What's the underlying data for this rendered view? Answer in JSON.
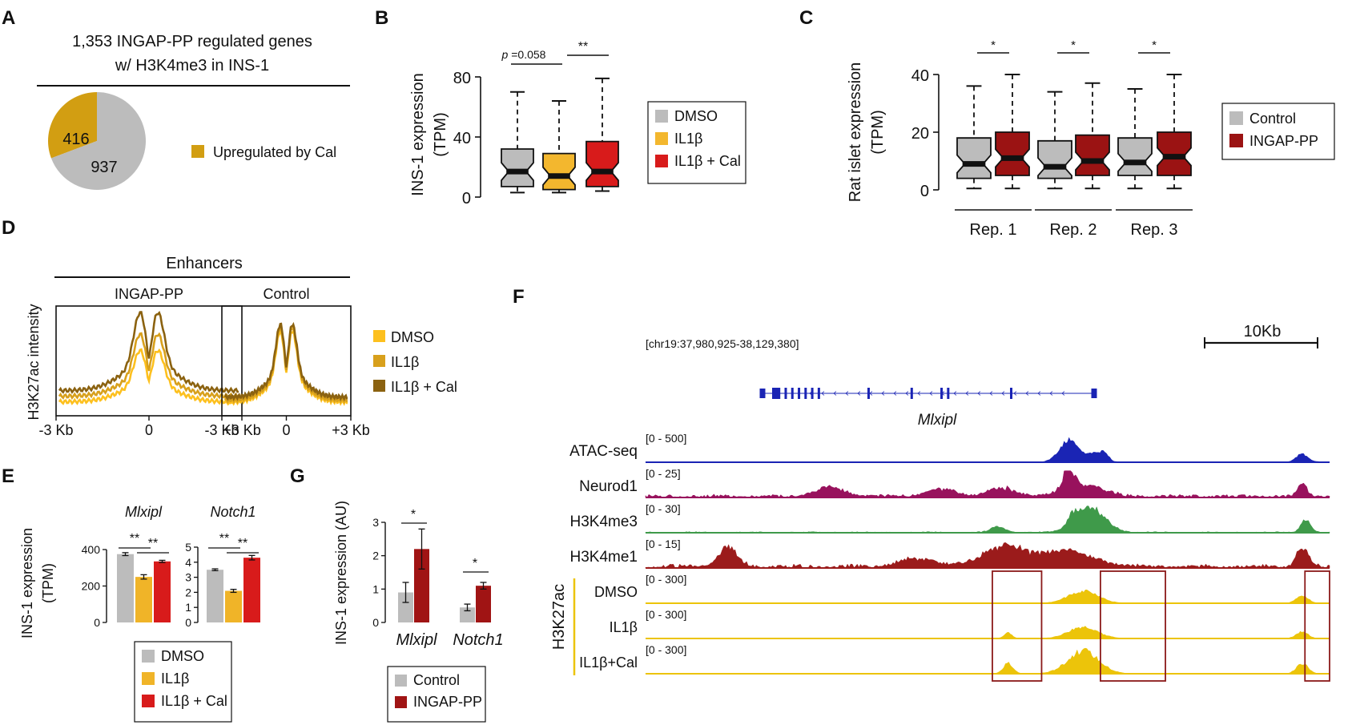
{
  "colors": {
    "grey": "#bcbcbc",
    "cal_gold": "#d29e12",
    "dmso_b": "#f3b72e",
    "il1b_b": "#f0b428",
    "cal_red": "#d81b1b",
    "dark_red": "#9b1313",
    "ingap_red": "#a01414",
    "atac": "#1a24b4",
    "neurod1": "#98125d",
    "h3k4me3": "#3f9a4a",
    "h3k4me1": "#9b1b1b",
    "h3k27ac": "#ecc40a",
    "gene": "#1a24b4",
    "dmso_d": "#fdc01e",
    "il1b_d": "#d8a01c",
    "cal_d": "#8b6210",
    "box_outline": "#8b1a1a"
  },
  "panels": {
    "A": "A",
    "B": "B",
    "C": "C",
    "D": "D",
    "E": "E",
    "F": "F",
    "G": "G"
  },
  "chart_data": [
    {
      "id": "A",
      "type": "pie",
      "title_line1": "1,353 INGAP-PP regulated genes",
      "title_line2": "w/ H3K4me3 in INS-1",
      "slices": [
        {
          "label": "416",
          "value": 416
        },
        {
          "label": "937",
          "value": 937
        }
      ],
      "legend": "Upregulated by Cal"
    },
    {
      "id": "B",
      "type": "box",
      "ylabel_line1": "INS-1 expression",
      "ylabel_line2": "(TPM)",
      "ylim": [
        0,
        80
      ],
      "yticks": [
        "0",
        "40",
        "80"
      ],
      "series": [
        {
          "name": "DMSO",
          "min": 3,
          "q1": 7,
          "median": 17,
          "q3": 32,
          "max": 70
        },
        {
          "name": "IL1β",
          "min": 3,
          "q1": 5,
          "median": 14,
          "q3": 29,
          "max": 64
        },
        {
          "name": "IL1β + Cal",
          "min": 4,
          "q1": 7,
          "median": 17,
          "q3": 37,
          "max": 79
        }
      ],
      "annotations": [
        {
          "label_prefix": "p",
          "label": " =0.058",
          "from": 0,
          "to": 1
        },
        {
          "label": "**",
          "from": 1,
          "to": 2
        }
      ],
      "legend": [
        "DMSO",
        "IL1β",
        "IL1β + Cal"
      ]
    },
    {
      "id": "C",
      "type": "box",
      "ylabel_line1": "Rat islet expression",
      "ylabel_line2": "(TPM)",
      "ylim": [
        0,
        40
      ],
      "yticks": [
        "0",
        "20",
        "40"
      ],
      "groups": [
        "Rep. 1",
        "Rep. 2",
        "Rep. 3"
      ],
      "series": [
        {
          "group": "Rep. 1",
          "name": "Control",
          "min": 0.5,
          "q1": 4,
          "median": 9,
          "q3": 18,
          "max": 36
        },
        {
          "group": "Rep. 1",
          "name": "INGAP-PP",
          "min": 0.5,
          "q1": 5,
          "median": 11,
          "q3": 20,
          "max": 40
        },
        {
          "group": "Rep. 2",
          "name": "Control",
          "min": 0.5,
          "q1": 4,
          "median": 8,
          "q3": 17,
          "max": 34
        },
        {
          "group": "Rep. 2",
          "name": "INGAP-PP",
          "min": 0.5,
          "q1": 5,
          "median": 10,
          "q3": 19,
          "max": 37
        },
        {
          "group": "Rep. 3",
          "name": "Control",
          "min": 0.5,
          "q1": 5,
          "median": 9.5,
          "q3": 18,
          "max": 35
        },
        {
          "group": "Rep. 3",
          "name": "INGAP-PP",
          "min": 0.5,
          "q1": 5,
          "median": 11.5,
          "q3": 20,
          "max": 40
        }
      ],
      "stars": [
        "*",
        "*",
        "*"
      ],
      "legend": [
        "Control",
        "INGAP-PP"
      ]
    },
    {
      "id": "D",
      "type": "line",
      "title": "Enhancers",
      "subplots": [
        "INGAP-PP",
        "Control"
      ],
      "ylabel": "H3K27ac intensity",
      "xticks": [
        "-3 Kb",
        "0",
        "+3 Kb"
      ],
      "series": [
        {
          "name": "DMSO",
          "ingap_amp": 0.58,
          "ingap_base": 0.08,
          "ctrl_amp": 0.8,
          "ctrl_base": 0.08
        },
        {
          "name": "IL1β",
          "ingap_amp": 0.7,
          "ingap_base": 0.14,
          "ctrl_amp": 0.82,
          "ctrl_base": 0.1
        },
        {
          "name": "IL1β + Cal",
          "ingap_amp": 0.88,
          "ingap_base": 0.2,
          "ctrl_amp": 0.82,
          "ctrl_base": 0.13
        }
      ],
      "legend": [
        "DMSO",
        "IL1β",
        "IL1β + Cal"
      ]
    },
    {
      "id": "E",
      "type": "bar",
      "ylabel_line1": "INS-1 expression",
      "ylabel_line2": "(TPM)",
      "subplots": [
        {
          "gene": "Mlxipl",
          "ylim": [
            0,
            400
          ],
          "yticks": [
            "0",
            "200",
            "400"
          ],
          "values": [
            375,
            250,
            335
          ],
          "errors": [
            8,
            12,
            6
          ],
          "stars": [
            "**",
            "**"
          ]
        },
        {
          "gene": "Notch1",
          "ylim": [
            0,
            5
          ],
          "yticks": [
            "0",
            "1",
            "2",
            "3",
            "4",
            "5"
          ],
          "values": [
            3.5,
            2.1,
            4.3
          ],
          "errors": [
            0.06,
            0.1,
            0.15
          ],
          "stars": [
            "**",
            "**"
          ]
        }
      ],
      "series_names": [
        "DMSO",
        "IL1β",
        "IL1β + Cal"
      ],
      "legend": [
        "DMSO",
        "IL1β",
        "IL1β + Cal"
      ]
    },
    {
      "id": "G",
      "type": "bar",
      "ylabel": "INS-1 expression (AU)",
      "ylim": [
        0,
        3
      ],
      "yticks": [
        "0",
        "1",
        "2",
        "3"
      ],
      "categories": [
        "Mlxipl",
        "Notch1"
      ],
      "series": [
        {
          "name": "Control",
          "values": [
            0.9,
            0.45
          ],
          "errors": [
            0.3,
            0.1
          ]
        },
        {
          "name": "INGAP-PP",
          "values": [
            2.2,
            1.1
          ],
          "errors": [
            0.6,
            0.1
          ]
        }
      ],
      "stars": [
        "*",
        "*"
      ],
      "legend": [
        "Control",
        "INGAP-PP"
      ]
    },
    {
      "id": "F",
      "type": "genome_tracks",
      "locus": "[chr19:37,980,925-38,129,380]",
      "scale_label": "10Kb",
      "gene": "Mlxipl",
      "h3k27ac_group": "H3K27ac",
      "tracks": [
        {
          "name": "ATAC-seq",
          "range": "[0 - 500]",
          "bg": 0.05,
          "peaks": [
            [
              0.62,
              0.02,
              1.0
            ],
            [
              0.655,
              0.012,
              0.3
            ],
            [
              0.67,
              0.01,
              0.4
            ],
            [
              0.96,
              0.012,
              0.35
            ]
          ]
        },
        {
          "name": "Neurod1",
          "range": "[0 - 25]",
          "bg": 0.3,
          "peaks": [
            [
              0.618,
              0.01,
              1.0
            ],
            [
              0.64,
              0.04,
              0.55
            ],
            [
              0.96,
              0.01,
              0.55
            ],
            [
              0.52,
              0.03,
              0.35
            ],
            [
              0.27,
              0.03,
              0.4
            ],
            [
              0.43,
              0.03,
              0.3
            ]
          ]
        },
        {
          "name": "H3K4me3",
          "range": "[0 - 30]",
          "bg": 0.1,
          "peaks": [
            [
              0.65,
              0.03,
              1.1
            ],
            [
              0.625,
              0.01,
              0.4
            ],
            [
              0.965,
              0.01,
              0.55
            ],
            [
              0.515,
              0.015,
              0.25
            ]
          ]
        },
        {
          "name": "H3K4me1",
          "range": "[0 - 15]",
          "bg": 0.35,
          "peaks": [
            [
              0.52,
              0.04,
              0.85
            ],
            [
              0.61,
              0.06,
              0.7
            ],
            [
              0.12,
              0.02,
              0.8
            ],
            [
              0.96,
              0.012,
              0.8
            ],
            [
              0.4,
              0.04,
              0.35
            ]
          ]
        },
        {
          "name": "DMSO",
          "range": "[0 - 300]",
          "bg": 0.02,
          "peaks": [
            [
              0.64,
              0.03,
              0.55
            ],
            [
              0.96,
              0.012,
              0.35
            ]
          ]
        },
        {
          "name": "IL1β",
          "range": "[0 - 300]",
          "bg": 0.02,
          "peaks": [
            [
              0.64,
              0.03,
              0.5
            ],
            [
              0.96,
              0.012,
              0.3
            ],
            [
              0.53,
              0.008,
              0.25
            ]
          ]
        },
        {
          "name": "IL1β+Cal",
          "range": "[0 - 300]",
          "bg": 0.02,
          "peaks": [
            [
              0.64,
              0.032,
              1.0
            ],
            [
              0.96,
              0.012,
              0.45
            ],
            [
              0.53,
              0.01,
              0.45
            ]
          ]
        }
      ],
      "gene_exons": [
        0.0,
        0.05,
        0.07,
        0.09,
        0.11,
        0.13,
        0.15,
        0.17,
        0.32,
        0.45,
        0.54,
        0.56,
        0.75,
        1.0
      ],
      "highlight_regions": [
        [
          0.507,
          0.579
        ],
        [
          0.665,
          0.76
        ],
        [
          0.964,
          1.0
        ]
      ]
    }
  ]
}
